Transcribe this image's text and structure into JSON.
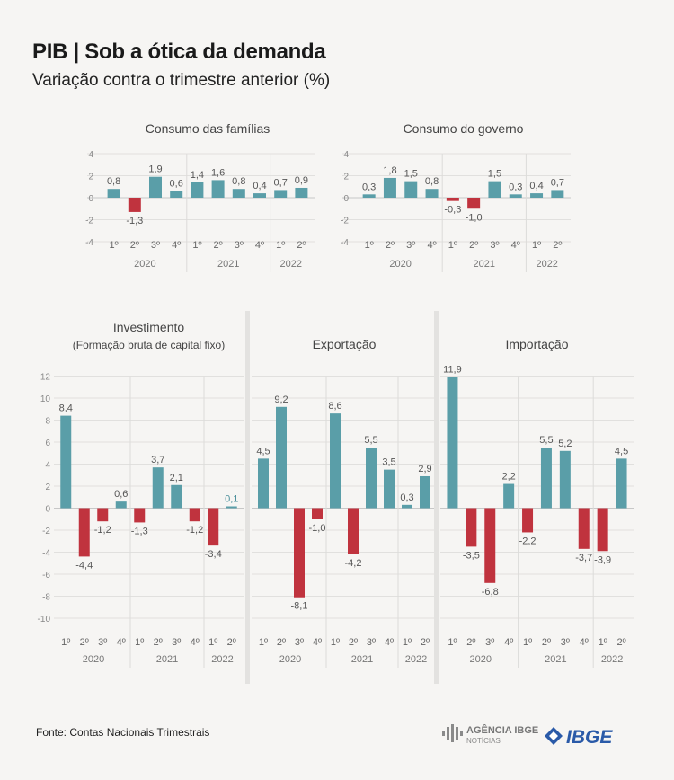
{
  "header": {
    "title": "PIB | Sob a ótica da demanda",
    "subtitle": "Variação contra o trimestre anterior (%)"
  },
  "footer": {
    "source": "Fonte: Contas Nacionais Trimestrais",
    "logo_agencia_line1": "AGÊNCIA IBGE",
    "logo_agencia_line2": "NOTÍCIAS",
    "logo_ibge": "IBGE"
  },
  "colors": {
    "positive": "#5a9ea8",
    "negative": "#c0333e",
    "highlight_label": "#4a8f9a"
  },
  "chart_data": [
    {
      "type": "bar",
      "title": "Consumo das famílias",
      "categories": [
        "1º",
        "2º",
        "3º",
        "4º",
        "1º",
        "2º",
        "3º",
        "4º",
        "1º",
        "2º"
      ],
      "groups": [
        {
          "label": "2020",
          "count": 4
        },
        {
          "label": "2021",
          "count": 4
        },
        {
          "label": "2022",
          "count": 2
        }
      ],
      "values": [
        0.8,
        -1.3,
        1.9,
        0.6,
        1.4,
        1.6,
        0.8,
        0.4,
        0.7,
        0.9
      ],
      "value_labels": [
        "0,8",
        "-1,3",
        "1,9",
        "0,6",
        "1,4",
        "1,6",
        "0,8",
        "0,4",
        "0,7",
        "0,9"
      ],
      "ylim": [
        -4,
        4
      ],
      "yticks": [
        "4",
        "2",
        "0",
        "-2",
        "-4"
      ]
    },
    {
      "type": "bar",
      "title": "Consumo do governo",
      "categories": [
        "1º",
        "2º",
        "3º",
        "4º",
        "1º",
        "2º",
        "3º",
        "4º",
        "1º",
        "2º"
      ],
      "groups": [
        {
          "label": "2020",
          "count": 4
        },
        {
          "label": "2021",
          "count": 4
        },
        {
          "label": "2022",
          "count": 2
        }
      ],
      "values": [
        0.3,
        1.8,
        1.5,
        0.8,
        -0.3,
        -1.0,
        1.5,
        0.3,
        0.4,
        0.7
      ],
      "value_labels": [
        "0,3",
        "1,8",
        "1,5",
        "0,8",
        "-0,3",
        "-1,0",
        "1,5",
        "0,3",
        "0,4",
        "0,7"
      ],
      "ylim": [
        -4,
        4
      ],
      "yticks": [
        "4",
        "2",
        "0",
        "-2",
        "-4"
      ]
    },
    {
      "type": "bar",
      "title": "Investimento",
      "subtitle": "(Formação bruta de capital fixo)",
      "categories": [
        "1º",
        "2º",
        "3º",
        "4º",
        "1º",
        "2º",
        "3º",
        "4º",
        "1º",
        "2º"
      ],
      "groups": [
        {
          "label": "2020",
          "count": 4
        },
        {
          "label": "2021",
          "count": 4
        },
        {
          "label": "2022",
          "count": 2
        }
      ],
      "values": [
        8.4,
        -4.4,
        -1.2,
        0.6,
        -1.3,
        3.7,
        2.1,
        -1.2,
        -3.4,
        0.1
      ],
      "value_labels": [
        "8,4",
        "-4,4",
        "-1,2",
        "0,6",
        "-1,3",
        "3,7",
        "2,1",
        "-1,2",
        "-3,4",
        "0,1"
      ],
      "ylim": [
        -10,
        12
      ],
      "yticks": [
        "12",
        "10",
        "8",
        "6",
        "4",
        "2",
        "0",
        "-2",
        "-4",
        "-6",
        "-8",
        "-10"
      ]
    },
    {
      "type": "bar",
      "title": "Exportação",
      "categories": [
        "1º",
        "2º",
        "3º",
        "4º",
        "1º",
        "2º",
        "3º",
        "4º",
        "1º",
        "2º"
      ],
      "groups": [
        {
          "label": "2020",
          "count": 4
        },
        {
          "label": "2021",
          "count": 4
        },
        {
          "label": "2022",
          "count": 2
        }
      ],
      "values": [
        4.5,
        9.2,
        -8.1,
        -1.0,
        8.6,
        -4.2,
        5.5,
        3.5,
        0.3,
        2.9
      ],
      "value_labels": [
        "4,5",
        "9,2",
        "-8,1",
        "-1,0",
        "8,6",
        "-4,2",
        "5,5",
        "3,5",
        "0,3",
        "2,9"
      ],
      "ylim": [
        -10,
        12
      ]
    },
    {
      "type": "bar",
      "title": "Importação",
      "categories": [
        "1º",
        "2º",
        "3º",
        "4º",
        "1º",
        "2º",
        "3º",
        "4º",
        "1º",
        "2º"
      ],
      "groups": [
        {
          "label": "2020",
          "count": 4
        },
        {
          "label": "2021",
          "count": 4
        },
        {
          "label": "2022",
          "count": 2
        }
      ],
      "values": [
        11.9,
        -3.5,
        -6.8,
        2.2,
        -2.2,
        5.5,
        5.2,
        -3.7,
        -3.9,
        4.5
      ],
      "value_labels": [
        "11,9",
        "-3,5",
        "-6,8",
        "2,2",
        "-2,2",
        "5,5",
        "5,2",
        "-3,7",
        "-3,9",
        "4,5"
      ],
      "ylim": [
        -10,
        12
      ]
    }
  ]
}
